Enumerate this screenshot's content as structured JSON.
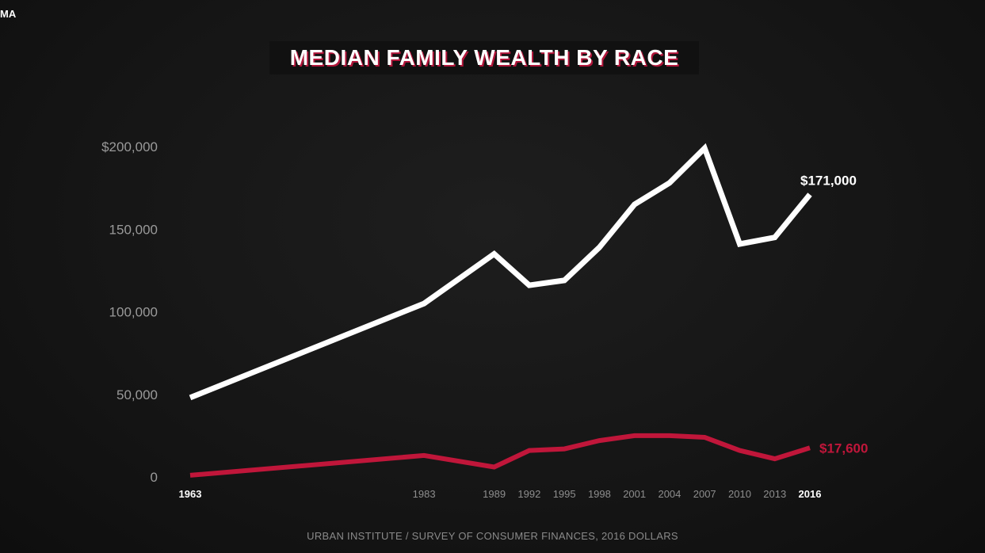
{
  "header": {
    "corner_tag": "MA",
    "title": "MEDIAN FAMILY WEALTH BY RACE"
  },
  "footer": {
    "source": "URBAN INSTITUTE / SURVEY OF CONSUMER FINANCES, 2016 DOLLARS"
  },
  "colors": {
    "background": "#151515",
    "series_white": "#ffffff",
    "series_black": "#c0163a",
    "tick_text": "#9a9a9a",
    "title_shadow": "#b0163a"
  },
  "chart_data": {
    "type": "line",
    "title": "MEDIAN FAMILY WEALTH BY RACE",
    "xlabel": "",
    "ylabel": "",
    "ylim": [
      0,
      200000
    ],
    "xlim": [
      1963,
      2016
    ],
    "grid": false,
    "legend": "none",
    "yticks": [
      {
        "value": 0,
        "label": "0"
      },
      {
        "value": 50000,
        "label": "50,000"
      },
      {
        "value": 100000,
        "label": "100,000"
      },
      {
        "value": 150000,
        "label": "150,000"
      },
      {
        "value": 200000,
        "label": "$200,000"
      }
    ],
    "xticks": [
      {
        "value": 1963,
        "label": "1963",
        "bold": true
      },
      {
        "value": 1983,
        "label": "1983",
        "bold": false
      },
      {
        "value": 1989,
        "label": "1989",
        "bold": false
      },
      {
        "value": 1992,
        "label": "1992",
        "bold": false
      },
      {
        "value": 1995,
        "label": "1995",
        "bold": false
      },
      {
        "value": 1998,
        "label": "1998",
        "bold": false
      },
      {
        "value": 2001,
        "label": "2001",
        "bold": false
      },
      {
        "value": 2004,
        "label": "2004",
        "bold": false
      },
      {
        "value": 2007,
        "label": "2007",
        "bold": false
      },
      {
        "value": 2010,
        "label": "2010",
        "bold": false
      },
      {
        "value": 2013,
        "label": "2013",
        "bold": false
      },
      {
        "value": 2016,
        "label": "2016",
        "bold": true
      }
    ],
    "series": [
      {
        "color": "#ffffff",
        "end_label": "$171,000",
        "x": [
          1963,
          1983,
          1989,
          1992,
          1995,
          1998,
          2001,
          2004,
          2007,
          2010,
          2013,
          2016
        ],
        "values": [
          48000,
          105000,
          135000,
          116000,
          119000,
          139000,
          165000,
          178000,
          199000,
          141000,
          145000,
          171000
        ]
      },
      {
        "color": "#c0163a",
        "end_label": "$17,600",
        "x": [
          1963,
          1983,
          1989,
          1992,
          1995,
          1998,
          2001,
          2004,
          2007,
          2010,
          2013,
          2016
        ],
        "values": [
          1000,
          13000,
          6000,
          16000,
          17000,
          22000,
          25000,
          25000,
          24000,
          16000,
          11000,
          17600
        ]
      }
    ]
  }
}
